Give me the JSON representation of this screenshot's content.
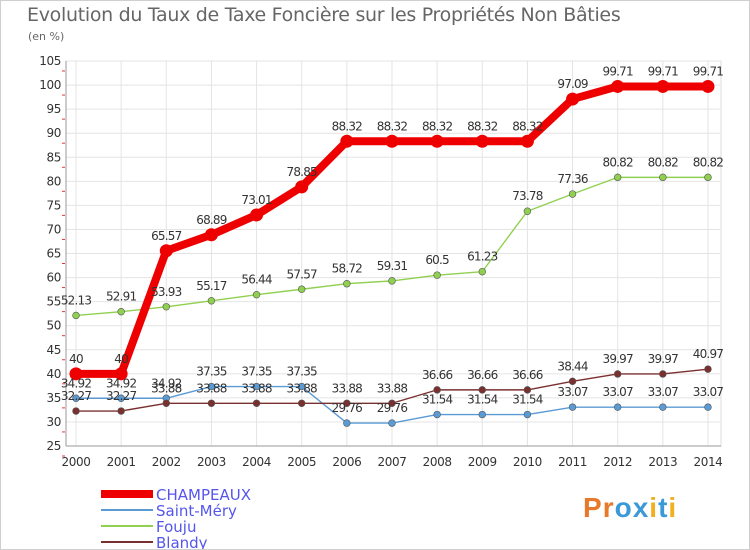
{
  "title": "Evolution du Taux de Taxe Foncière sur les Propriétés Non Bâties",
  "unit_label": "(en %)",
  "brand": "Proxiti",
  "chart_data": {
    "type": "line",
    "x": [
      "2000",
      "2001",
      "2002",
      "2003",
      "2004",
      "2005",
      "2006",
      "2007",
      "2008",
      "2009",
      "2010",
      "2011",
      "2012",
      "2013",
      "2014"
    ],
    "ylim": [
      25,
      105
    ],
    "yticks": [
      25,
      30,
      35,
      40,
      45,
      50,
      55,
      60,
      65,
      70,
      75,
      80,
      85,
      90,
      95,
      100,
      105
    ],
    "grid": true,
    "legend": "bottom-left",
    "series": [
      {
        "name": "CHAMPEAUX",
        "color": "#ee0000",
        "legend_text_color": "#5555ee",
        "values": [
          40,
          40,
          65.57,
          68.89,
          73.01,
          78.85,
          88.32,
          88.32,
          88.32,
          88.32,
          88.32,
          97.09,
          99.71,
          99.71,
          99.71
        ],
        "labels": [
          "40",
          "40",
          "65.57",
          "68.89",
          "73.01",
          "78.85",
          "88.32",
          "88.32",
          "88.32",
          "88.32",
          "88.32",
          "97.09",
          "99.71",
          "99.71",
          "99.71"
        ]
      },
      {
        "name": "Saint-Méry",
        "color": "#5b9bd5",
        "legend_text_color": "#5555ee",
        "values": [
          34.92,
          34.92,
          34.92,
          37.35,
          37.35,
          37.35,
          29.76,
          29.76,
          31.54,
          31.54,
          31.54,
          33.07,
          33.07,
          33.07,
          33.07
        ],
        "labels": [
          "34.92",
          "34.92",
          "34.92",
          "37.35",
          "37.35",
          "37.35",
          "29.76",
          "29.76",
          "31.54",
          "31.54",
          "31.54",
          "33.07",
          "33.07",
          "33.07",
          "33.07"
        ]
      },
      {
        "name": "Fouju",
        "color": "#90d050",
        "legend_text_color": "#5555ee",
        "values": [
          52.13,
          52.91,
          53.93,
          55.17,
          56.44,
          57.57,
          58.72,
          59.31,
          60.5,
          61.23,
          73.78,
          77.36,
          80.82,
          80.82,
          80.82
        ],
        "labels": [
          "52.13",
          "52.91",
          "53.93",
          "55.17",
          "56.44",
          "57.57",
          "58.72",
          "59.31",
          "60.5",
          "61.23",
          "73.78",
          "77.36",
          "80.82",
          "80.82",
          "80.82"
        ]
      },
      {
        "name": "Blandy",
        "color": "#7b3030",
        "legend_text_color": "#5555ee",
        "values": [
          32.27,
          32.27,
          33.88,
          33.88,
          33.88,
          33.88,
          33.88,
          33.88,
          36.66,
          36.66,
          36.66,
          38.44,
          39.97,
          39.97,
          40.97
        ],
        "labels": [
          "32.27",
          "32.27",
          "33.88",
          "33.88",
          "33.88",
          "33.88",
          "33.88",
          "33.88",
          "36.66",
          "36.66",
          "36.66",
          "38.44",
          "39.97",
          "39.97",
          "40.97"
        ]
      }
    ]
  }
}
